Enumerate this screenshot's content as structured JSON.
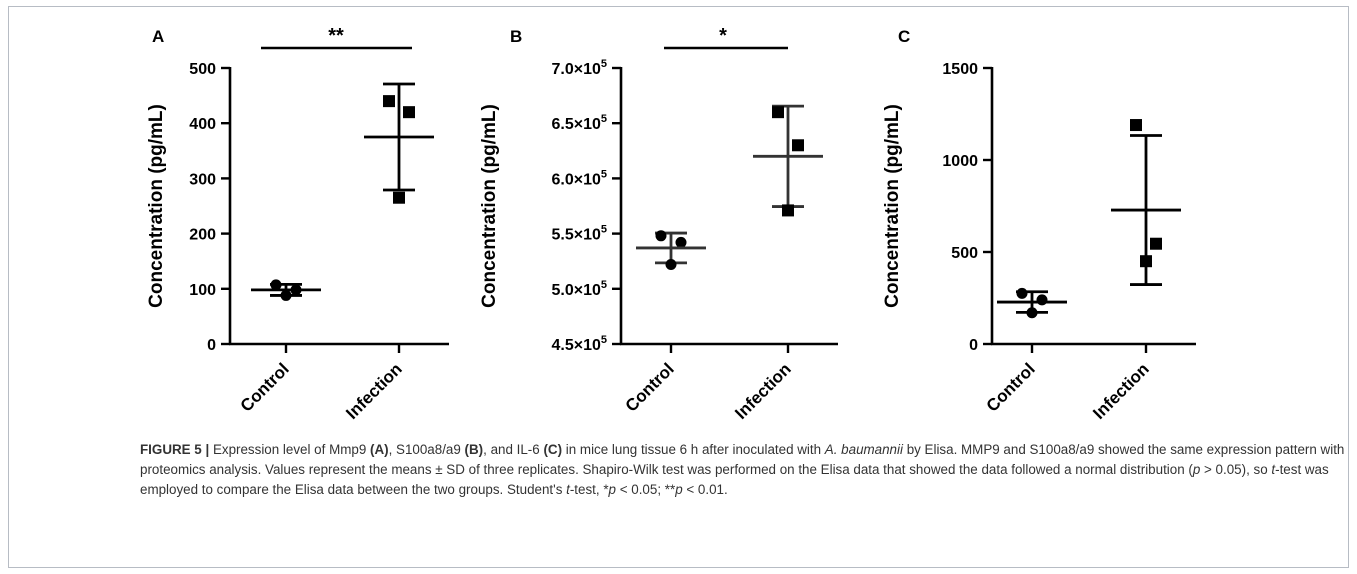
{
  "chart_data": [
    {
      "type": "scatter",
      "panel": "A",
      "ylabel": "Concentration (pg/mL)",
      "ylim": [
        0,
        500
      ],
      "yticks": [
        {
          "value": 0,
          "label": "0"
        },
        {
          "value": 100,
          "label": "100"
        },
        {
          "value": 200,
          "label": "200"
        },
        {
          "value": 300,
          "label": "300"
        },
        {
          "value": 400,
          "label": "400"
        },
        {
          "value": 500,
          "label": "500"
        }
      ],
      "categories": [
        "Control",
        "Infection"
      ],
      "series": [
        {
          "category": "Control",
          "marker": "circle",
          "points": [
            107,
            98,
            88
          ],
          "mean": 98,
          "sd": 10
        },
        {
          "category": "Infection",
          "marker": "square",
          "points": [
            440,
            420,
            265
          ],
          "mean": 375,
          "sd": 96
        }
      ],
      "significance": "**"
    },
    {
      "type": "scatter",
      "panel": "B",
      "ylabel": "Concentration (pg/mL)",
      "ylim": [
        450000,
        700000
      ],
      "yticks": [
        {
          "value": 450000,
          "mant": "4.5",
          "exp": "5"
        },
        {
          "value": 500000,
          "mant": "5.0",
          "exp": "5"
        },
        {
          "value": 550000,
          "mant": "5.5",
          "exp": "5"
        },
        {
          "value": 600000,
          "mant": "6.0",
          "exp": "5"
        },
        {
          "value": 650000,
          "mant": "6.5",
          "exp": "5"
        },
        {
          "value": 700000,
          "mant": "7.0",
          "exp": "5"
        }
      ],
      "categories": [
        "Control",
        "Infection"
      ],
      "series": [
        {
          "category": "Control",
          "marker": "circle",
          "points": [
            548000,
            542000,
            522000
          ],
          "mean": 537000,
          "sd": 13500
        },
        {
          "category": "Infection",
          "marker": "square",
          "points": [
            660000,
            630000,
            571000
          ],
          "mean": 620000,
          "sd": 45500
        }
      ],
      "significance": "*"
    },
    {
      "type": "scatter",
      "panel": "C",
      "ylabel": "Concentration (pg/mL)",
      "ylim": [
        0,
        1500
      ],
      "yticks": [
        {
          "value": 0,
          "label": "0"
        },
        {
          "value": 500,
          "label": "500"
        },
        {
          "value": 1000,
          "label": "1000"
        },
        {
          "value": 1500,
          "label": "1500"
        }
      ],
      "categories": [
        "Control",
        "Infection"
      ],
      "series": [
        {
          "category": "Control",
          "marker": "circle",
          "points": [
            275,
            240,
            170
          ],
          "mean": 228,
          "sd": 56
        },
        {
          "category": "Infection",
          "marker": "square",
          "points": [
            1190,
            545,
            450
          ],
          "mean": 728,
          "sd": 405
        }
      ],
      "significance": ""
    }
  ],
  "caption": {
    "figure_label": "FIGURE 5 |",
    "t1": " Expression level of Mmp9 ",
    "p1": "(A)",
    "t2": ", S100a8/a9 ",
    "p2": "(B)",
    "t3": ", and IL-6 ",
    "p3": "(C)",
    "t4": " in mice lung tissue 6 h after inoculated with ",
    "species": "A. baumannii",
    "t5": " by Elisa. MMP9 and S100a8/a9 showed the same expression pattern with proteomics analysis. Values represent the means ± SD of three replicates. Shapiro-Wilk test was performed on the Elisa data that showed the data followed a normal distribution (",
    "p_sym1": "p",
    "t6": " > 0.05), so ",
    "t_sym1": "t",
    "t7": "-test was employed to compare the Elisa data between the two groups. Student's ",
    "t_sym2": "t",
    "t8": "-test, *",
    "p_sym2": "p",
    "t9": " < 0.05; **",
    "p_sym3": "p",
    "t10": " < 0.01."
  },
  "colors": {
    "ink": "#000000",
    "caption_text": "#333333",
    "frame_border": "#b7bcc4",
    "errorbar_b": "#333333"
  }
}
